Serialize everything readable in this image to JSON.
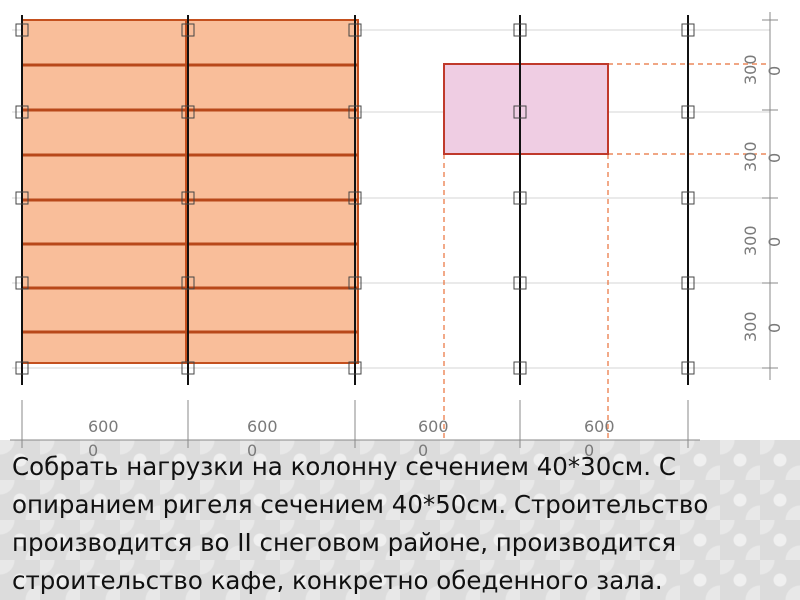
{
  "plan": {
    "span_labels": [
      "600",
      "600",
      "600",
      "600"
    ],
    "span_labels_wrap": [
      "0",
      "0",
      "0",
      "0"
    ],
    "bay_labels": [
      "300",
      "300",
      "300",
      "300"
    ],
    "bay_labels_wrap": [
      "0",
      "0",
      "0",
      "0"
    ],
    "colors": {
      "slab_fill": "#f9be9a",
      "slab_stroke": "#c4501e",
      "column_area_fill": "#efcde3",
      "column_area_stroke": "#c0392b",
      "axis_line": "#111111",
      "grid_line": "#d6d6d6",
      "dashed_line": "#e8703a"
    }
  },
  "task": {
    "text": "Собрать нагрузки на колонну сечением 40*30см. С опиранием ригеля сечением 40*50см. Строительство производится во II снеговом районе, производится строительство кафе, конкретно обеденного зала."
  }
}
